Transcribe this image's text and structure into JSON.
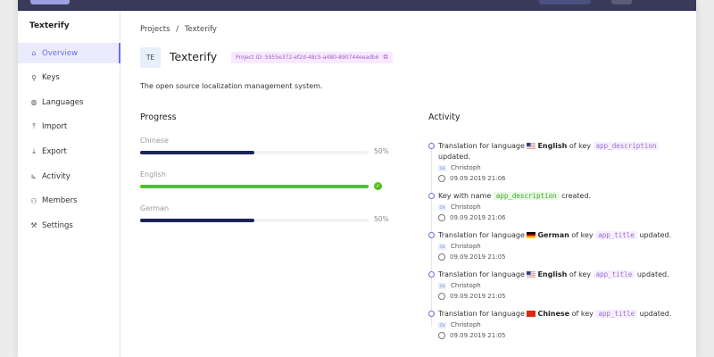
{
  "sidebar": {
    "title": "Texterify",
    "items": [
      {
        "label": "Overview",
        "icon": "home-icon",
        "active": true
      },
      {
        "label": "Keys",
        "icon": "search-icon"
      },
      {
        "label": "Languages",
        "icon": "globe-icon"
      },
      {
        "label": "Import",
        "icon": "upload-icon"
      },
      {
        "label": "Export",
        "icon": "download-icon"
      },
      {
        "label": "Activity",
        "icon": "chart-icon"
      },
      {
        "label": "Members",
        "icon": "users-icon"
      },
      {
        "label": "Settings",
        "icon": "wrench-icon"
      }
    ]
  },
  "breadcrumb": {
    "root": "Projects",
    "sep": "/",
    "current": "Texterify"
  },
  "project": {
    "initials": "TE",
    "name": "Texterify",
    "id_label": "Project ID: 5955e372-ef2d-48c5-a480-890744eeadb6",
    "description": "The open source localization management system."
  },
  "progress": {
    "title": "Progress",
    "items": [
      {
        "language": "Chinese",
        "percent": 50,
        "label": "50%",
        "color": "#1a2456"
      },
      {
        "language": "English",
        "percent": 100,
        "label": "",
        "color": "#52c41a"
      },
      {
        "language": "German",
        "percent": 50,
        "label": "50%",
        "color": "#1a2456"
      }
    ]
  },
  "activity": {
    "title": "Activity",
    "events": [
      {
        "pre": "Translation for language ",
        "flag": "us",
        "lang": "English",
        "mid": " of key ",
        "key": "app_description",
        "post": " updated.",
        "user_initials": "CH",
        "user": "Christoph",
        "time": "09.09.2019 21:06"
      },
      {
        "pre": "Key with name ",
        "flag": "",
        "lang": "",
        "mid": "",
        "key": "app_description",
        "post": " created.",
        "user_initials": "CH",
        "user": "Christoph",
        "time": "09.09.2019 21:06",
        "green": true
      },
      {
        "pre": "Translation for language ",
        "flag": "de",
        "lang": "German",
        "mid": " of key ",
        "key": "app_title",
        "post": " updated.",
        "user_initials": "CH",
        "user": "Christoph",
        "time": "09.09.2019 21:05"
      },
      {
        "pre": "Translation for language ",
        "flag": "us",
        "lang": "English",
        "mid": " of key ",
        "key": "app_title",
        "post": " updated.",
        "user_initials": "CH",
        "user": "Christoph",
        "time": "09.09.2019 21:05"
      },
      {
        "pre": "Translation for language ",
        "flag": "cn",
        "lang": "Chinese",
        "mid": " of key ",
        "key": "app_title",
        "post": " updated.",
        "user_initials": "CH",
        "user": "Christoph",
        "time": "09.09.2019 21:05"
      }
    ]
  }
}
